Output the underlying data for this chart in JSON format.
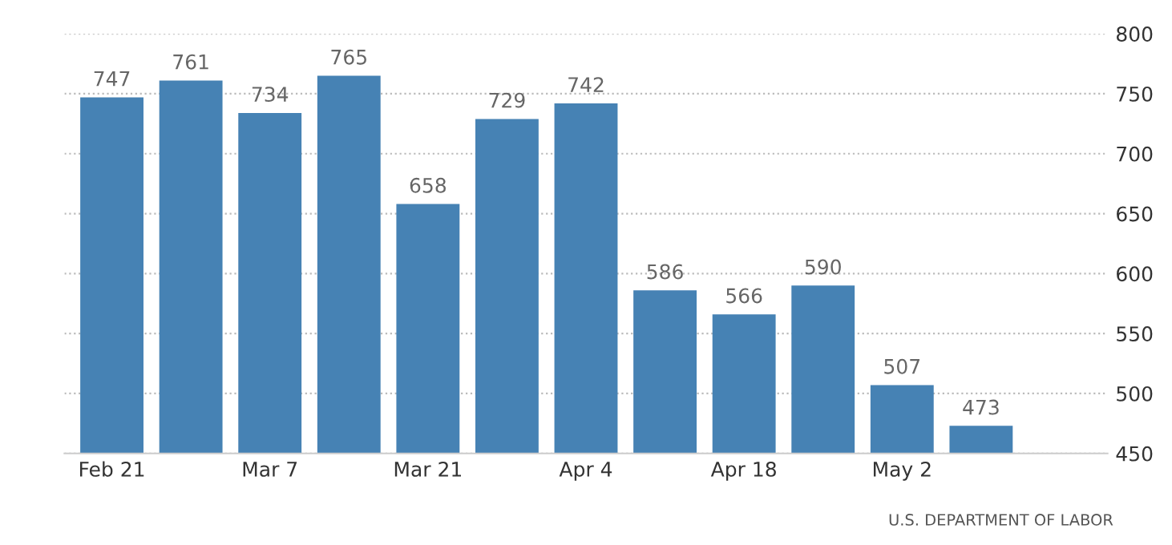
{
  "chart_data": {
    "type": "bar",
    "categories": [
      "Feb 21",
      null,
      "Mar 7",
      null,
      "Mar 21",
      null,
      "Apr 4",
      null,
      "Apr 18",
      null,
      "May 2",
      null,
      null
    ],
    "values": [
      747,
      761,
      734,
      765,
      658,
      729,
      742,
      586,
      566,
      590,
      507,
      473,
      null
    ],
    "color": "#4682b4",
    "ylim": [
      450,
      800
    ],
    "yticks": [
      450,
      500,
      550,
      600,
      650,
      700,
      750,
      800
    ],
    "grid": "y",
    "data_labels": true,
    "annotations": [
      "U.S. DEPARTMENT OF LABOR"
    ]
  }
}
